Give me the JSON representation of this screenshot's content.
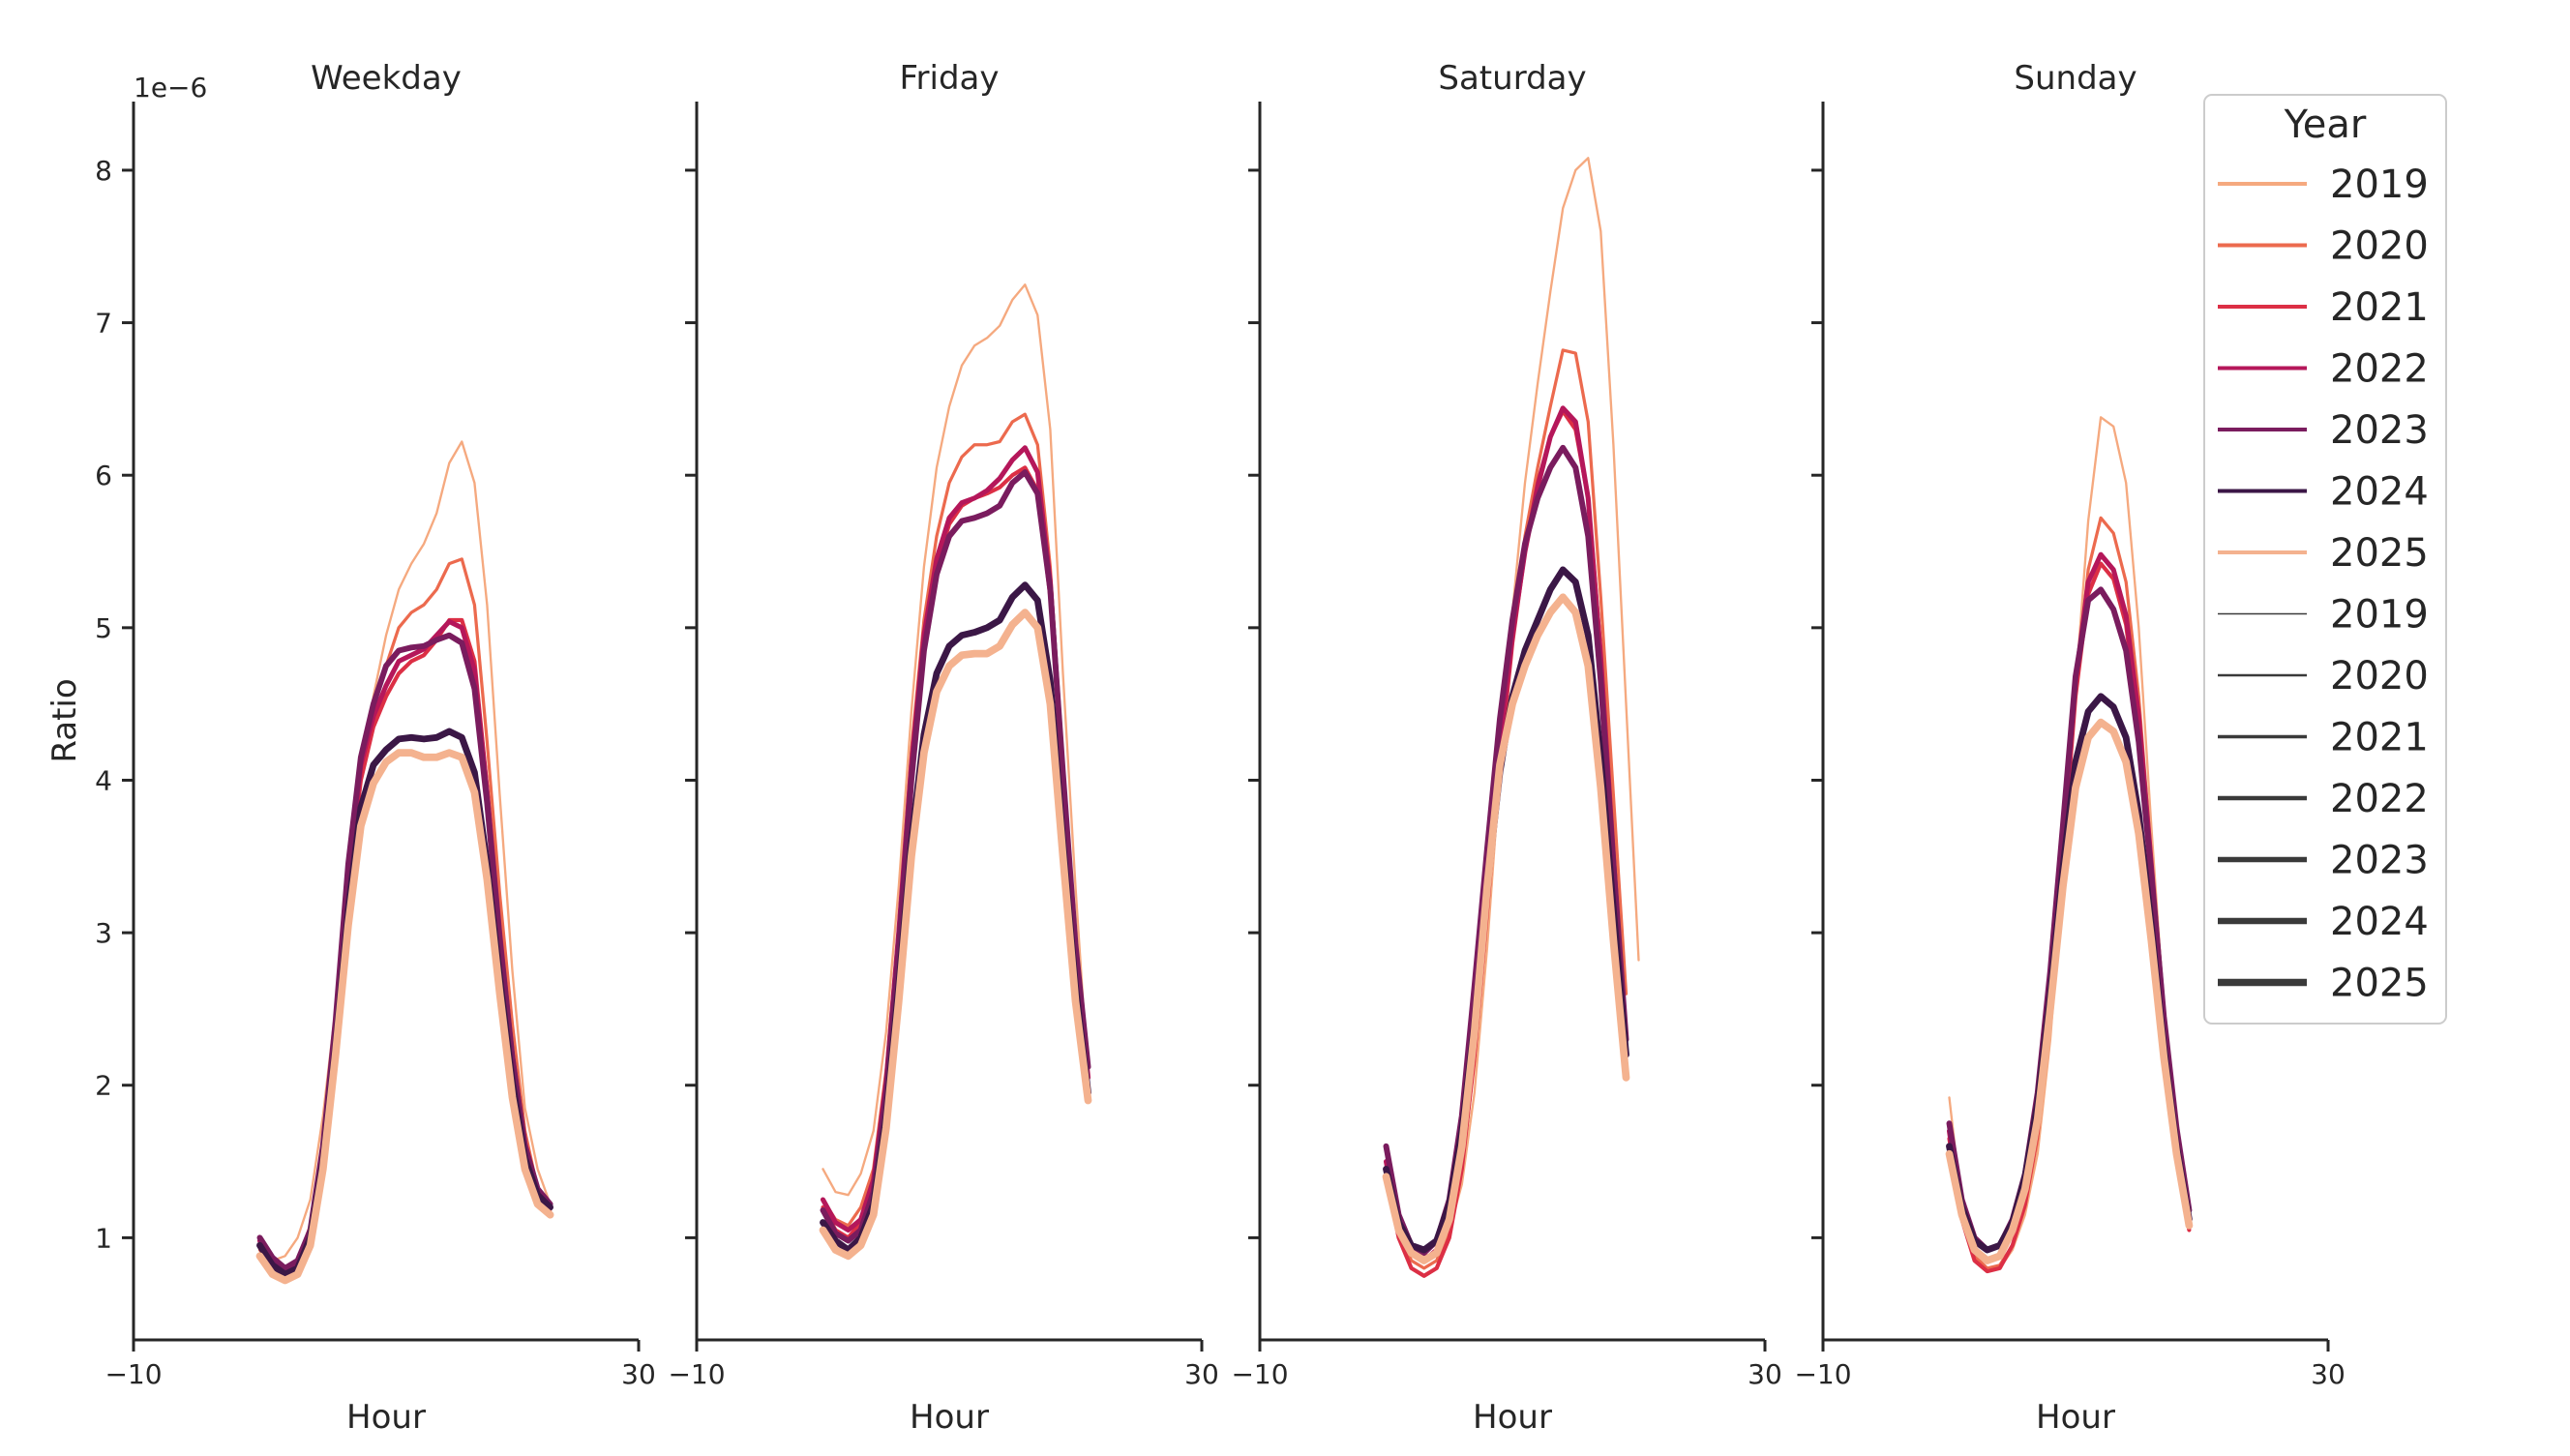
{
  "chart_data": {
    "type": "line",
    "offset_label": "1e−6",
    "ylabel": "Ratio",
    "xlabel": "Hour",
    "xlim": [
      -10,
      30
    ],
    "ylim": [
      0.33,
      8.45
    ],
    "xticks": [
      -10,
      30
    ],
    "xtick_labels": [
      "−10",
      "30"
    ],
    "yticks": [
      1,
      2,
      3,
      4,
      5,
      6,
      7,
      8
    ],
    "ytick_labels": [
      "1",
      "2",
      "3",
      "4",
      "5",
      "6",
      "7",
      "8"
    ],
    "legend": {
      "title": "Year",
      "position": "upper right",
      "hue_entries": [
        {
          "label": "2019",
          "color": "#f5a97f"
        },
        {
          "label": "2020",
          "color": "#ec6a4e"
        },
        {
          "label": "2021",
          "color": "#dc2f45"
        },
        {
          "label": "2022",
          "color": "#b5175a"
        },
        {
          "label": "2023",
          "color": "#7a1c5e"
        },
        {
          "label": "2024",
          "color": "#3b1746"
        },
        {
          "label": "2025",
          "color": "#f4b28f"
        }
      ],
      "size_entries": [
        {
          "label": "2019",
          "width": 1.5
        },
        {
          "label": "2020",
          "width": 2.5
        },
        {
          "label": "2021",
          "width": 3.5
        },
        {
          "label": "2022",
          "width": 4.5
        },
        {
          "label": "2023",
          "width": 5.5
        },
        {
          "label": "2024",
          "width": 6.5
        },
        {
          "label": "2025",
          "width": 7.5
        }
      ]
    },
    "x": [
      0,
      1,
      2,
      3,
      4,
      5,
      6,
      7,
      8,
      9,
      10,
      11,
      12,
      13,
      14,
      15,
      16,
      17,
      18,
      19,
      20,
      21,
      22,
      23
    ],
    "panels": [
      {
        "title": "Weekday",
        "series": [
          {
            "year": "2019",
            "values": [
              0.95,
              0.85,
              0.88,
              1.0,
              1.25,
              1.8,
              2.5,
              3.3,
              4.0,
              4.55,
              4.95,
              5.25,
              5.42,
              5.55,
              5.75,
              6.08,
              6.22,
              5.95,
              5.15,
              3.9,
              2.75,
              1.85,
              1.45,
              1.22
            ]
          },
          {
            "year": "2020",
            "values": [
              0.92,
              0.8,
              0.78,
              0.85,
              1.08,
              1.65,
              2.4,
              3.3,
              4.05,
              4.5,
              4.75,
              5.0,
              5.1,
              5.15,
              5.25,
              5.42,
              5.45,
              5.15,
              4.25,
              3.25,
              2.4,
              1.7,
              1.32,
              1.18
            ]
          },
          {
            "year": "2021",
            "values": [
              0.95,
              0.82,
              0.75,
              0.8,
              1.0,
              1.55,
              2.35,
              3.3,
              4.0,
              4.35,
              4.55,
              4.7,
              4.78,
              4.82,
              4.92,
              5.05,
              5.05,
              4.78,
              3.95,
              3.0,
              2.2,
              1.6,
              1.3,
              1.2
            ]
          },
          {
            "year": "2022",
            "values": [
              0.98,
              0.85,
              0.78,
              0.82,
              1.02,
              1.55,
              2.35,
              3.35,
              4.1,
              4.42,
              4.62,
              4.78,
              4.82,
              4.86,
              4.95,
              5.04,
              5.0,
              4.72,
              3.92,
              3.0,
              2.2,
              1.62,
              1.32,
              1.22
            ]
          },
          {
            "year": "2023",
            "values": [
              1.0,
              0.87,
              0.8,
              0.85,
              1.05,
              1.6,
              2.42,
              3.45,
              4.15,
              4.5,
              4.75,
              4.85,
              4.87,
              4.88,
              4.92,
              4.95,
              4.9,
              4.6,
              3.85,
              2.95,
              2.18,
              1.6,
              1.32,
              1.22
            ]
          },
          {
            "year": "2024",
            "values": [
              0.95,
              0.82,
              0.76,
              0.8,
              1.0,
              1.5,
              2.25,
              3.15,
              3.82,
              4.1,
              4.2,
              4.27,
              4.28,
              4.27,
              4.28,
              4.32,
              4.28,
              4.05,
              3.45,
              2.7,
              2.02,
              1.52,
              1.28,
              1.2
            ]
          },
          {
            "year": "2025",
            "values": [
              0.88,
              0.76,
              0.72,
              0.76,
              0.95,
              1.45,
              2.2,
              3.05,
              3.7,
              3.98,
              4.12,
              4.18,
              4.18,
              4.15,
              4.15,
              4.18,
              4.15,
              3.92,
              3.35,
              2.6,
              1.92,
              1.45,
              1.22,
              1.15
            ]
          }
        ]
      },
      {
        "title": "Friday",
        "series": [
          {
            "year": "2019",
            "values": [
              1.45,
              1.3,
              1.28,
              1.42,
              1.7,
              2.35,
              3.3,
              4.45,
              5.4,
              6.05,
              6.45,
              6.72,
              6.85,
              6.9,
              6.98,
              7.15,
              7.25,
              7.05,
              6.3,
              4.7,
              3.3,
              2.05
            ]
          },
          {
            "year": "2020",
            "values": [
              1.25,
              1.12,
              1.08,
              1.2,
              1.45,
              2.1,
              3.05,
              4.2,
              5.05,
              5.6,
              5.95,
              6.12,
              6.2,
              6.2,
              6.22,
              6.35,
              6.4,
              6.2,
              5.4,
              4.1,
              2.9,
              1.95
            ]
          },
          {
            "year": "2021",
            "values": [
              1.2,
              1.05,
              1.0,
              1.1,
              1.35,
              2.0,
              2.95,
              4.05,
              4.9,
              5.4,
              5.68,
              5.8,
              5.85,
              5.88,
              5.92,
              6.0,
              6.05,
              5.9,
              5.2,
              4.0,
              2.85,
              2.0
            ]
          },
          {
            "year": "2022",
            "values": [
              1.25,
              1.1,
              1.05,
              1.12,
              1.38,
              2.02,
              3.0,
              4.1,
              4.95,
              5.45,
              5.72,
              5.82,
              5.85,
              5.9,
              5.98,
              6.1,
              6.18,
              6.02,
              5.3,
              4.05,
              2.9,
              2.05
            ]
          },
          {
            "year": "2023",
            "values": [
              1.18,
              1.03,
              0.98,
              1.05,
              1.3,
              1.95,
              2.9,
              4.0,
              4.85,
              5.35,
              5.6,
              5.7,
              5.72,
              5.75,
              5.8,
              5.95,
              6.02,
              5.88,
              5.25,
              4.05,
              2.92,
              2.12
            ]
          },
          {
            "year": "2024",
            "values": [
              1.1,
              0.98,
              0.92,
              1.0,
              1.22,
              1.8,
              2.65,
              3.6,
              4.3,
              4.7,
              4.88,
              4.95,
              4.97,
              5.0,
              5.05,
              5.2,
              5.28,
              5.18,
              4.65,
              3.6,
              2.65,
              1.95
            ]
          },
          {
            "year": "2025",
            "values": [
              1.05,
              0.92,
              0.88,
              0.95,
              1.15,
              1.72,
              2.55,
              3.5,
              4.18,
              4.58,
              4.75,
              4.82,
              4.83,
              4.83,
              4.88,
              5.02,
              5.1,
              5.0,
              4.5,
              3.5,
              2.55,
              1.9
            ]
          }
        ]
      },
      {
        "title": "Saturday",
        "series": [
          {
            "year": "2019",
            "values": [
              1.45,
              1.15,
              0.95,
              0.88,
              0.9,
              1.05,
              1.35,
              1.95,
              2.9,
              4.05,
              5.1,
              5.95,
              6.6,
              7.2,
              7.75,
              8.0,
              8.08,
              7.6,
              6.2,
              4.5,
              2.82
            ]
          },
          {
            "year": "2020",
            "values": [
              1.4,
              1.05,
              0.85,
              0.8,
              0.85,
              1.05,
              1.45,
              2.15,
              3.1,
              4.1,
              4.95,
              5.6,
              6.05,
              6.45,
              6.82,
              6.8,
              6.35,
              5.2,
              3.9,
              2.6
            ]
          },
          {
            "year": "2021",
            "values": [
              1.4,
              1.0,
              0.8,
              0.75,
              0.8,
              1.0,
              1.45,
              2.2,
              3.15,
              4.1,
              4.9,
              5.5,
              5.95,
              6.25,
              6.42,
              6.3,
              5.85,
              4.85,
              3.55,
              2.25
            ]
          },
          {
            "year": "2022",
            "values": [
              1.5,
              1.08,
              0.9,
              0.85,
              0.92,
              1.15,
              1.65,
              2.45,
              3.38,
              4.25,
              4.95,
              5.5,
              5.92,
              6.25,
              6.44,
              6.35,
              5.85,
              4.8,
              3.5,
              2.2
            ]
          },
          {
            "year": "2023",
            "values": [
              1.6,
              1.15,
              0.95,
              0.9,
              0.98,
              1.25,
              1.8,
              2.65,
              3.55,
              4.4,
              5.05,
              5.55,
              5.85,
              6.05,
              6.18,
              6.05,
              5.6,
              4.65,
              3.45,
              2.3
            ]
          },
          {
            "year": "2024",
            "values": [
              1.45,
              1.1,
              0.95,
              0.92,
              0.98,
              1.22,
              1.7,
              2.4,
              3.3,
              4.05,
              4.55,
              4.85,
              5.05,
              5.25,
              5.38,
              5.3,
              4.95,
              4.15,
              3.15,
              2.2
            ]
          },
          {
            "year": "2025",
            "values": [
              1.4,
              1.05,
              0.9,
              0.85,
              0.9,
              1.12,
              1.6,
              2.35,
              3.3,
              4.1,
              4.5,
              4.75,
              4.95,
              5.1,
              5.2,
              5.1,
              4.75,
              3.95,
              2.95,
              2.05
            ]
          }
        ]
      },
      {
        "title": "Sunday",
        "series": [
          {
            "year": "2019",
            "values": [
              1.92,
              1.2,
              0.88,
              0.78,
              0.8,
              0.92,
              1.15,
              1.55,
              2.3,
              3.35,
              4.6,
              5.7,
              6.38,
              6.32,
              5.95,
              5.0,
              3.7,
              2.5,
              1.6,
              1.05
            ]
          },
          {
            "year": "2020",
            "values": [
              1.7,
              1.15,
              0.88,
              0.8,
              0.82,
              0.95,
              1.2,
              1.65,
              2.42,
              3.45,
              4.6,
              5.38,
              5.72,
              5.62,
              5.3,
              4.55,
              3.5,
              2.45,
              1.65,
              1.1
            ]
          },
          {
            "year": "2021",
            "values": [
              1.65,
              1.12,
              0.85,
              0.78,
              0.8,
              0.95,
              1.22,
              1.7,
              2.5,
              3.5,
              4.55,
              5.22,
              5.42,
              5.32,
              5.02,
              4.35,
              3.38,
              2.4,
              1.6,
              1.05
            ]
          },
          {
            "year": "2022",
            "values": [
              1.7,
              1.15,
              0.92,
              0.85,
              0.88,
              1.05,
              1.35,
              1.85,
              2.65,
              3.62,
              4.65,
              5.3,
              5.48,
              5.38,
              5.08,
              4.42,
              3.45,
              2.45,
              1.68,
              1.12
            ]
          },
          {
            "year": "2023",
            "values": [
              1.75,
              1.25,
              1.0,
              0.92,
              0.95,
              1.12,
              1.42,
              1.95,
              2.75,
              3.7,
              4.68,
              5.18,
              5.25,
              5.12,
              4.85,
              4.25,
              3.38,
              2.45,
              1.72,
              1.18
            ]
          },
          {
            "year": "2024",
            "values": [
              1.6,
              1.2,
              0.98,
              0.92,
              0.95,
              1.1,
              1.4,
              1.88,
              2.6,
              3.42,
              4.12,
              4.45,
              4.55,
              4.48,
              4.28,
              3.78,
              3.05,
              2.25,
              1.6,
              1.12
            ]
          },
          {
            "year": "2025",
            "values": [
              1.55,
              1.15,
              0.92,
              0.85,
              0.88,
              1.05,
              1.32,
              1.78,
              2.5,
              3.3,
              3.95,
              4.28,
              4.38,
              4.32,
              4.12,
              3.65,
              2.95,
              2.18,
              1.55,
              1.08
            ]
          }
        ]
      }
    ]
  }
}
